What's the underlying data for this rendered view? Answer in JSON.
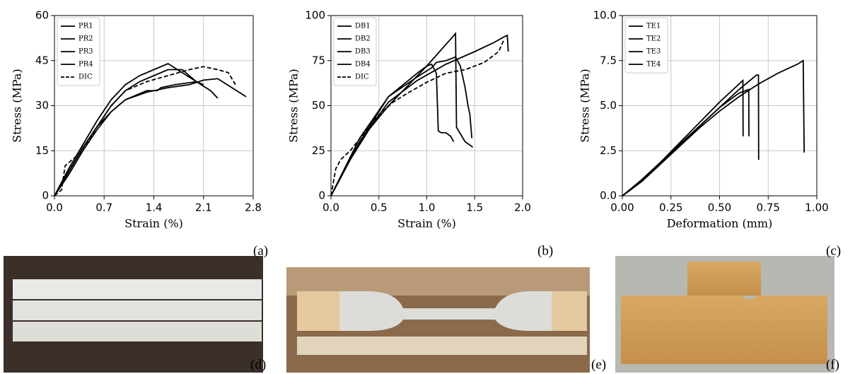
{
  "chart_data": [
    {
      "type": "line",
      "panel_label": "(a)",
      "xlabel": "Strain (%)",
      "ylabel": "Stress (MPa)",
      "xlim": [
        0,
        2.8
      ],
      "xticks": [
        {
          "value": 0,
          "label": "0.0"
        },
        0.7,
        1.4,
        2.1,
        2.8
      ],
      "ylim": [
        0,
        60
      ],
      "yticks": [
        0,
        15,
        30,
        45,
        60
      ],
      "grid": true,
      "legend": "upper left",
      "series": [
        {
          "name": "PR1",
          "color": "#000000",
          "linestyle": "solid",
          "x": [
            0,
            0.2,
            0.4,
            0.6,
            0.8,
            1.0,
            1.2,
            1.4,
            1.6,
            1.8,
            2.0,
            2.2,
            2.3
          ],
          "values": [
            0,
            9,
            17,
            25,
            32,
            37,
            40,
            42,
            44,
            41,
            38,
            35,
            32.5
          ]
        },
        {
          "name": "PR2",
          "color": "#000000",
          "linestyle": "solid",
          "x": [
            0,
            0.2,
            0.4,
            0.6,
            0.8,
            1.0,
            1.3,
            1.6,
            1.9,
            2.1,
            2.3,
            2.5,
            2.7
          ],
          "values": [
            0,
            8,
            16,
            23,
            28,
            32,
            34.5,
            36,
            37,
            38.5,
            39,
            36,
            33
          ]
        },
        {
          "name": "PR3",
          "color": "#000000",
          "linestyle": "solid",
          "x": [
            0,
            0.2,
            0.4,
            0.6,
            0.8,
            1.0,
            1.2,
            1.4,
            1.6,
            1.8,
            1.9,
            2.0
          ],
          "values": [
            0,
            8,
            16,
            23,
            30,
            35,
            38,
            40,
            42,
            42,
            40,
            38
          ]
        },
        {
          "name": "PR4",
          "color": "#000000",
          "linestyle": "solid",
          "x": [
            0,
            0.2,
            0.4,
            0.6,
            0.8,
            1.0,
            1.3,
            1.45,
            1.5,
            1.7,
            2.0,
            2.1
          ],
          "values": [
            0,
            7,
            15,
            22,
            28,
            32,
            35,
            35,
            36,
            37,
            38,
            37
          ]
        },
        {
          "name": "DIC",
          "color": "#000000",
          "linestyle": "dashed",
          "x": [
            0,
            0.1,
            0.15,
            0.2,
            0.4,
            0.6,
            0.8,
            1.0,
            1.3,
            1.6,
            1.9,
            2.1,
            2.3,
            2.45,
            2.55
          ],
          "values": [
            0,
            2,
            10,
            11,
            15,
            23,
            30,
            35,
            38,
            40,
            42,
            43,
            42,
            41,
            37
          ]
        }
      ]
    },
    {
      "type": "line",
      "panel_label": "(b)",
      "xlabel": "Strain (%)",
      "ylabel": "Stress (MPa)",
      "xlim": [
        0,
        2.0
      ],
      "xticks": [
        {
          "value": 0,
          "label": "0.0"
        },
        0.5,
        {
          "value": 1,
          "label": "1.0"
        },
        1.5,
        {
          "value": 2,
          "label": "2.0"
        }
      ],
      "ylim": [
        0,
        100
      ],
      "yticks": [
        0,
        25,
        50,
        75,
        100
      ],
      "grid": true,
      "legend": "upper left",
      "series": [
        {
          "name": "DB1",
          "color": "#000000",
          "linestyle": "solid",
          "x": [
            0,
            0.2,
            0.4,
            0.6,
            0.8,
            1.0,
            1.2,
            1.3,
            1.31,
            1.4,
            1.48
          ],
          "values": [
            0,
            20,
            37,
            50,
            61,
            72,
            84,
            90,
            38,
            30,
            27
          ]
        },
        {
          "name": "DB2",
          "color": "#000000",
          "linestyle": "solid",
          "x": [
            0,
            0.3,
            0.6,
            0.9,
            1.2,
            1.5,
            1.7,
            1.8,
            1.84,
            1.85
          ],
          "values": [
            0,
            30,
            52,
            64,
            73,
            80,
            85,
            88,
            89,
            80
          ]
        },
        {
          "name": "DB3",
          "color": "#000000",
          "linestyle": "solid",
          "x": [
            0,
            0.3,
            0.6,
            0.9,
            1.0,
            1.05,
            1.1,
            1.12,
            1.15,
            1.2,
            1.25,
            1.28
          ],
          "values": [
            0,
            30,
            55,
            68,
            72,
            73,
            68,
            36,
            35,
            35,
            33,
            30
          ]
        },
        {
          "name": "DB4",
          "color": "#000000",
          "linestyle": "solid",
          "x": [
            0,
            0.3,
            0.6,
            0.9,
            1.05,
            1.1,
            1.2,
            1.3,
            1.35,
            1.4,
            1.43,
            1.45,
            1.47
          ],
          "values": [
            0,
            32,
            55,
            66,
            71,
            74,
            75,
            77,
            72,
            60,
            50,
            45,
            32
          ]
        },
        {
          "name": "DIC",
          "color": "#000000",
          "linestyle": "dashed",
          "x": [
            0,
            0.05,
            0.1,
            0.2,
            0.35,
            0.5,
            0.65,
            0.8,
            1.0,
            1.2,
            1.4,
            1.6,
            1.75,
            1.8
          ],
          "values": [
            0,
            15,
            20,
            25,
            35,
            45,
            52,
            57,
            63,
            68,
            70,
            74,
            80,
            86
          ]
        }
      ]
    },
    {
      "type": "line",
      "panel_label": "(c)",
      "xlabel": "Deformation (mm)",
      "ylabel": "Stress (MPa)",
      "xlim": [
        0,
        1.0
      ],
      "xticks": [
        {
          "value": 0,
          "label": "0.00"
        },
        0.25,
        {
          "value": 0.5,
          "label": "0.50"
        },
        0.75,
        {
          "value": 1,
          "label": "1.00"
        }
      ],
      "ylim": [
        0,
        10
      ],
      "yticks": [
        {
          "value": 0,
          "label": "0.0"
        },
        2.5,
        {
          "value": 5,
          "label": "5.0"
        },
        7.5,
        {
          "value": 10,
          "label": "10.0"
        }
      ],
      "grid": true,
      "legend": "upper left",
      "series": [
        {
          "name": "TE1",
          "color": "#000000",
          "linestyle": "solid",
          "x": [
            0,
            0.1,
            0.2,
            0.3,
            0.4,
            0.5,
            0.6,
            0.62,
            0.621
          ],
          "values": [
            0,
            0.8,
            1.9,
            3.0,
            4.1,
            5.2,
            6.2,
            6.4,
            3.3
          ]
        },
        {
          "name": "TE2",
          "color": "#000000",
          "linestyle": "solid",
          "x": [
            0,
            0.1,
            0.2,
            0.3,
            0.4,
            0.5,
            0.6,
            0.69,
            0.7,
            0.701
          ],
          "values": [
            0,
            0.8,
            1.8,
            2.9,
            3.9,
            4.9,
            5.9,
            6.7,
            6.7,
            2.0
          ]
        },
        {
          "name": "TE3",
          "color": "#000000",
          "linestyle": "solid",
          "x": [
            0,
            0.1,
            0.2,
            0.3,
            0.4,
            0.5,
            0.6,
            0.65,
            0.651
          ],
          "values": [
            0,
            0.9,
            1.9,
            2.9,
            3.9,
            4.9,
            5.7,
            5.9,
            3.3
          ]
        },
        {
          "name": "TE4",
          "color": "#000000",
          "linestyle": "solid",
          "x": [
            0,
            0.1,
            0.2,
            0.3,
            0.4,
            0.5,
            0.6,
            0.7,
            0.8,
            0.9,
            0.93,
            0.935
          ],
          "values": [
            0,
            0.8,
            1.8,
            2.8,
            3.8,
            4.7,
            5.5,
            6.2,
            6.8,
            7.3,
            7.5,
            2.4
          ]
        }
      ]
    }
  ],
  "photos": [
    {
      "label": "(d)"
    },
    {
      "label": "(e)"
    },
    {
      "label": "(f)"
    }
  ]
}
